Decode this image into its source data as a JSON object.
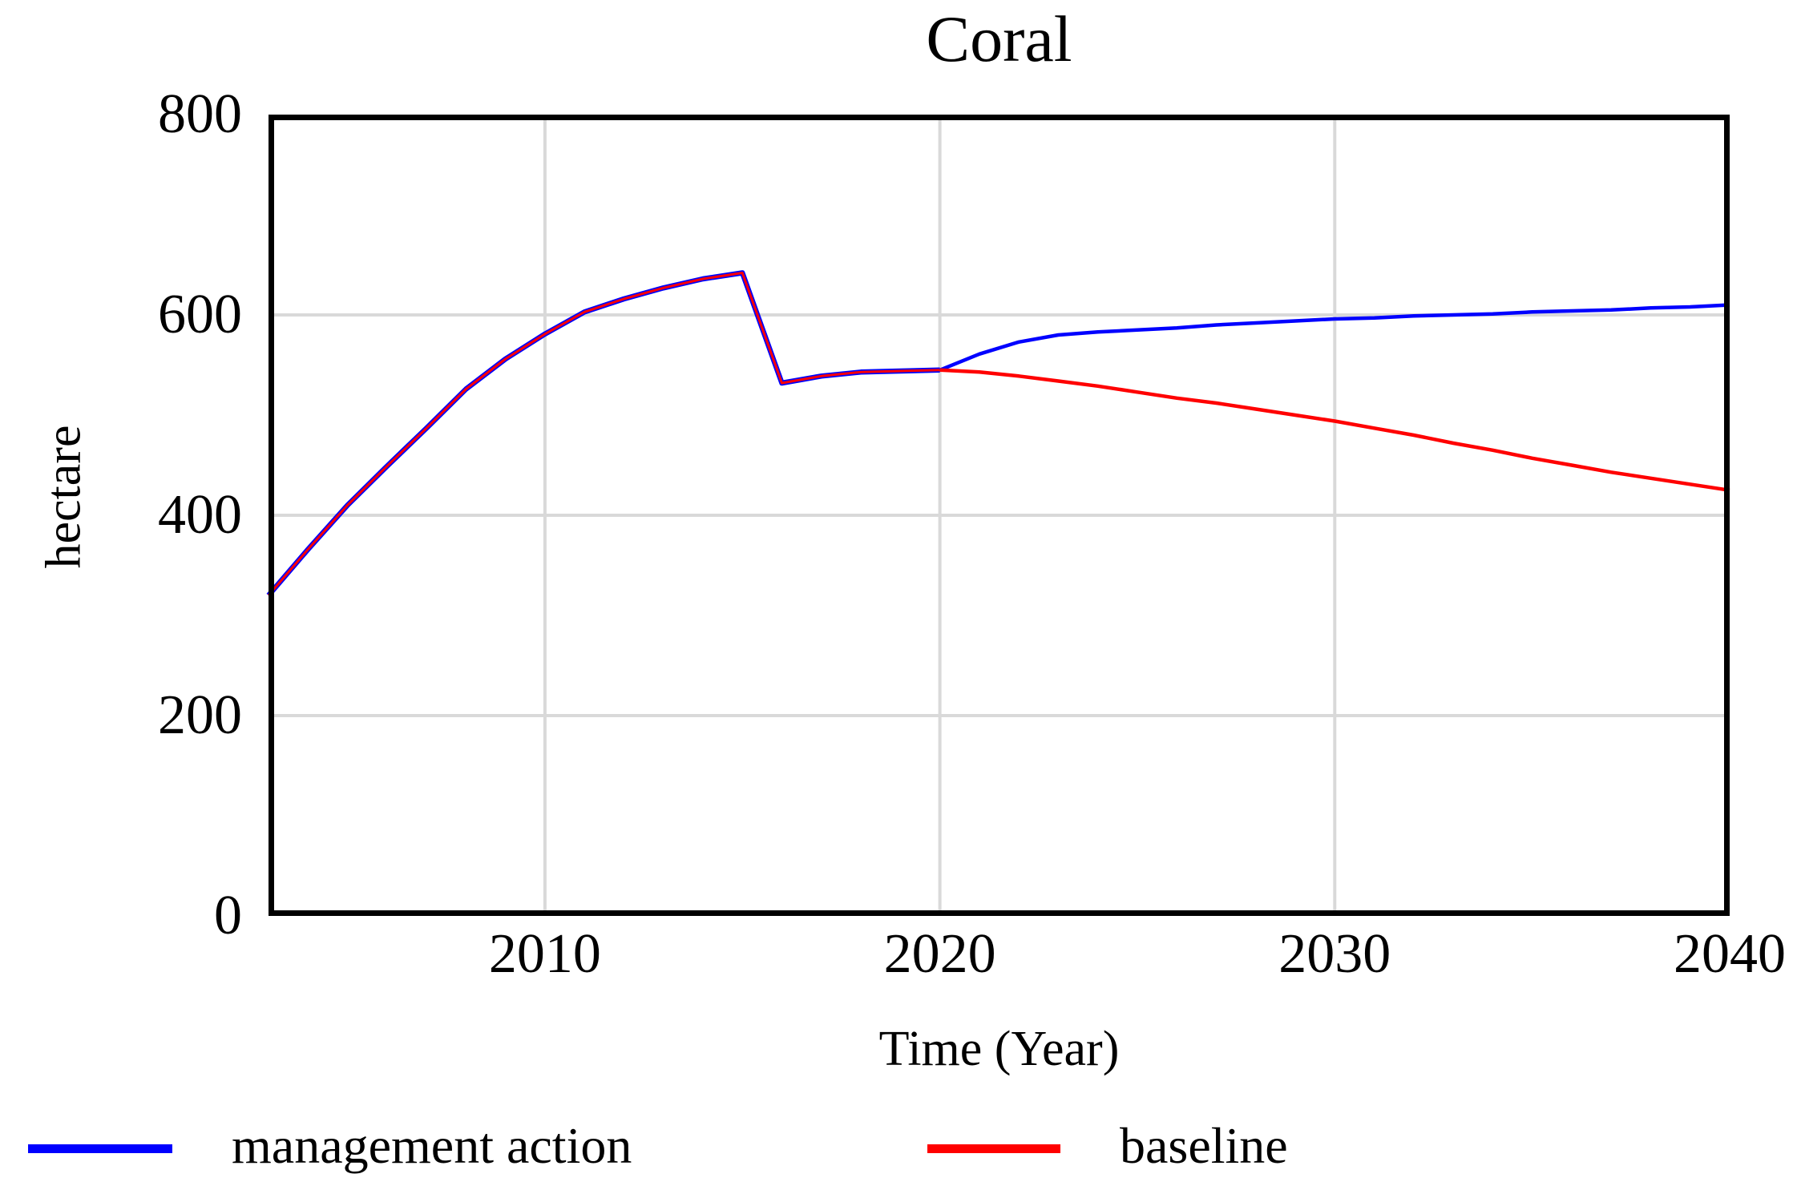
{
  "chart_data": {
    "type": "line",
    "title": "Coral",
    "ylabel": "hectare",
    "xlabel": "Time (Year)",
    "xlim": [
      2003,
      2040
    ],
    "ylim": [
      0,
      800
    ],
    "xticks": [
      2010,
      2020,
      2030,
      2040
    ],
    "yticks": [
      0,
      200,
      400,
      600,
      800
    ],
    "grid": true,
    "legend_position": "bottom",
    "colors": {
      "grid": "#d9d9d9",
      "frame": "#000000",
      "text": "#000000",
      "background": "#ffffff"
    },
    "x": [
      2003,
      2004,
      2005,
      2006,
      2007,
      2008,
      2009,
      2010,
      2011,
      2012,
      2013,
      2014,
      2015,
      2016,
      2017,
      2018,
      2019,
      2020,
      2021,
      2022,
      2023,
      2024,
      2025,
      2026,
      2027,
      2028,
      2029,
      2030,
      2031,
      2032,
      2033,
      2034,
      2035,
      2036,
      2037,
      2038,
      2039,
      2040
    ],
    "series": [
      {
        "name": "management action",
        "color": "#0000ff",
        "values": [
          320,
          366,
          410,
          449,
          487,
          526,
          556,
          581,
          603,
          616,
          627,
          636,
          642,
          532,
          539,
          543,
          544,
          545,
          561,
          573,
          580,
          583,
          585,
          587,
          590,
          592,
          594,
          596,
          597,
          599,
          600,
          601,
          603,
          604,
          605,
          607,
          608,
          610
        ]
      },
      {
        "name": "baseline",
        "color": "#ff0000",
        "values": [
          320,
          366,
          410,
          449,
          487,
          526,
          556,
          581,
          603,
          616,
          627,
          636,
          642,
          532,
          539,
          543,
          544,
          545,
          543,
          539,
          534,
          529,
          523,
          517,
          512,
          506,
          500,
          494,
          487,
          480,
          472,
          465,
          457,
          450,
          443,
          437,
          431,
          425
        ]
      }
    ]
  }
}
